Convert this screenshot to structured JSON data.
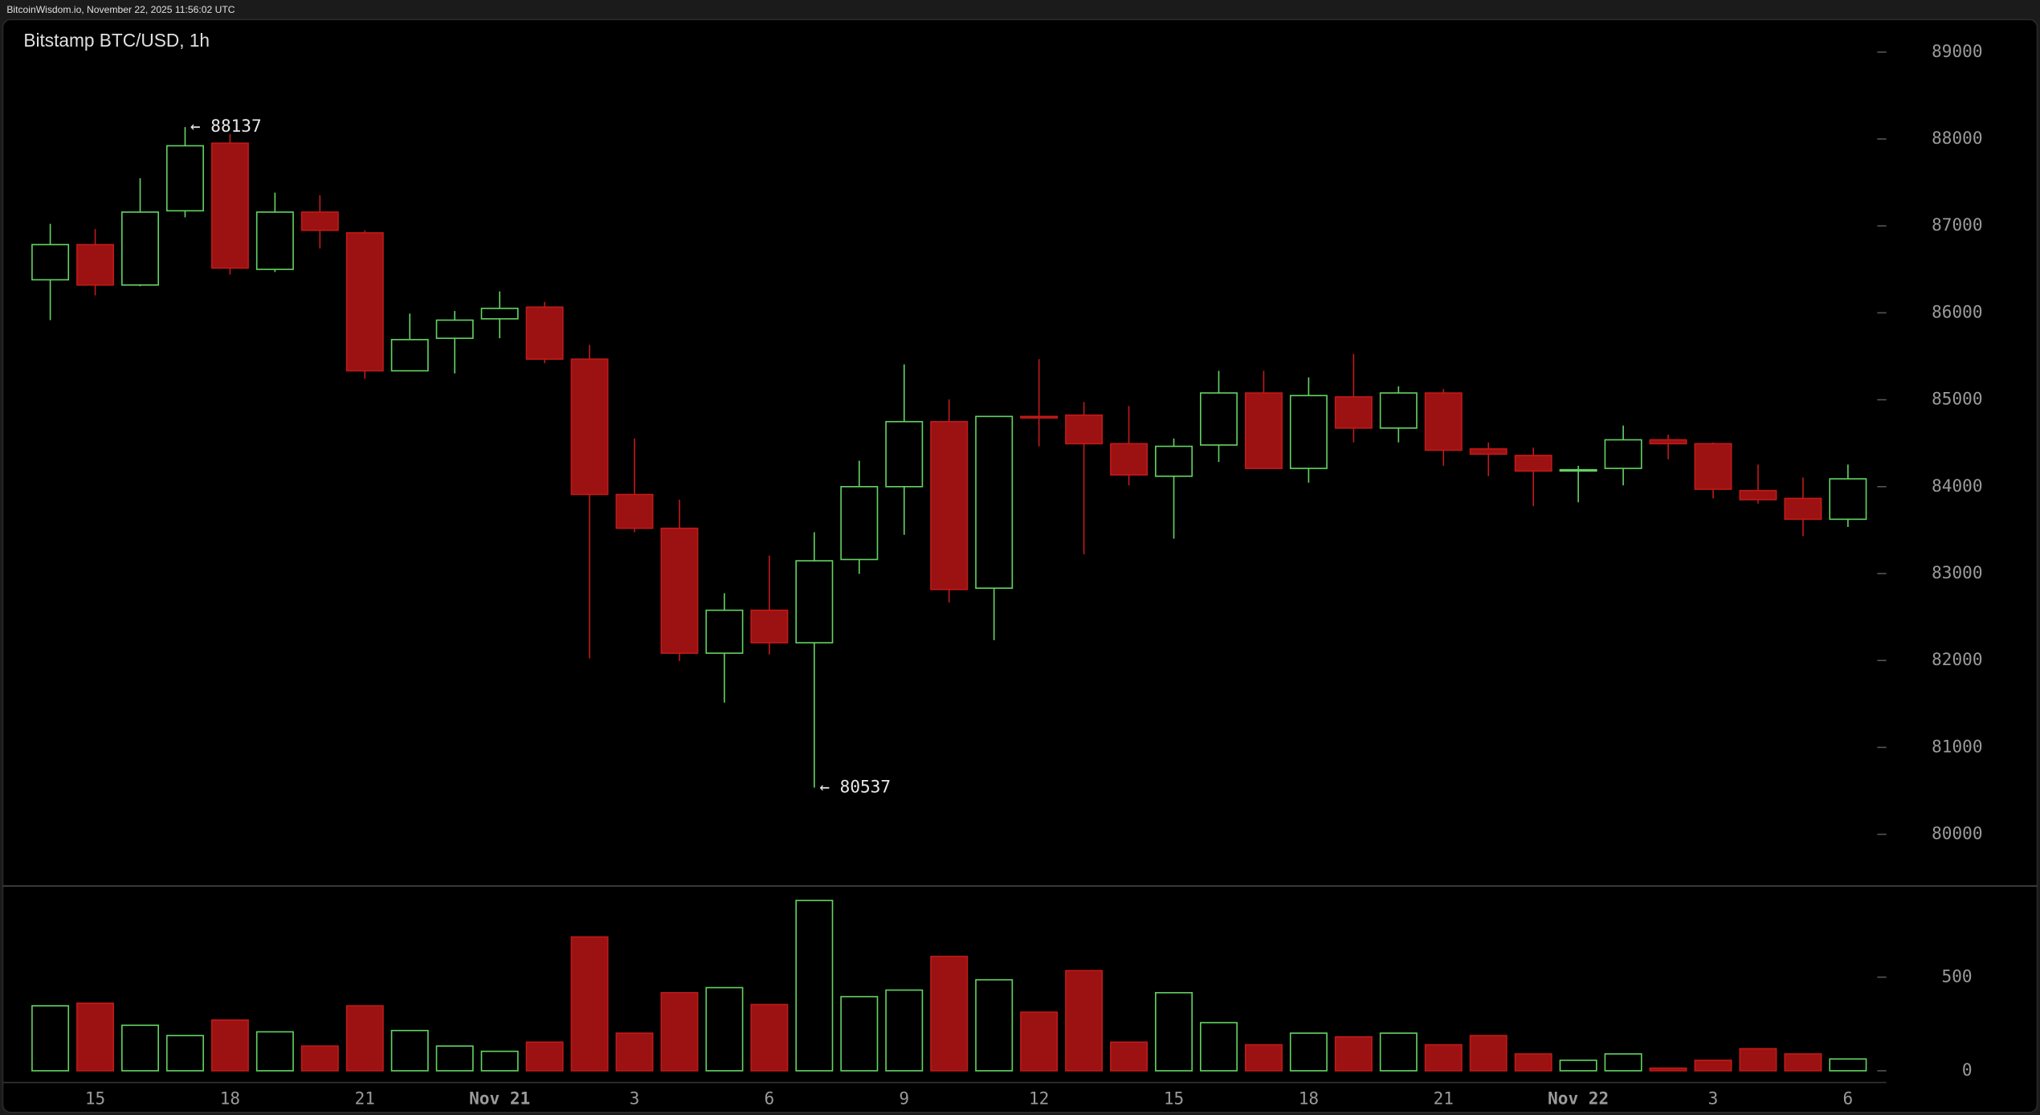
{
  "header": "BitcoinWisdom.io, November 22, 2025 11:56:02 UTC",
  "chart_data": {
    "type": "candlestick",
    "title": "Bitstamp BTC/USD, 1h",
    "categories": [
      null,
      "15",
      null,
      null,
      "18",
      null,
      null,
      "21",
      null,
      null,
      "Nov 21",
      null,
      null,
      "3",
      null,
      null,
      "6",
      null,
      null,
      "9",
      null,
      null,
      "12",
      null,
      null,
      "15",
      null,
      null,
      "18",
      null,
      null,
      "21",
      null,
      null,
      "Nov 22",
      null,
      null,
      "3",
      null,
      null,
      "6"
    ],
    "open": [
      86380,
      86785,
      86320,
      87174,
      87952,
      86500,
      87159,
      86920,
      85333,
      85707,
      85931,
      86066,
      85467,
      83910,
      83521,
      82084,
      82578,
      82204,
      83162,
      84000,
      84748,
      82832,
      84808,
      84823,
      84494,
      84120,
      84479,
      85078,
      84210,
      85033,
      84674,
      85078,
      84434,
      84359,
      84180,
      84210,
      84539,
      84494,
      83955,
      83865,
      83625
    ],
    "high": [
      87024,
      86964,
      87548,
      88137,
      88057,
      87383,
      87353,
      86949,
      85991,
      86021,
      86246,
      86126,
      85632,
      84554,
      83850,
      82773,
      83207,
      83476,
      84299,
      85407,
      85003,
      84808,
      85467,
      84973,
      84928,
      84554,
      85333,
      85333,
      85257,
      85527,
      85153,
      85123,
      84509,
      84449,
      84240,
      84703,
      84599,
      84509,
      84254,
      84105,
      84254
    ],
    "low": [
      85916,
      86200,
      86306,
      87099,
      86440,
      86470,
      86740,
      85243,
      85333,
      85303,
      85707,
      85422,
      82024,
      83476,
      81994,
      81515,
      82069,
      80537,
      82997,
      83446,
      82667,
      82234,
      84464,
      83222,
      84015,
      83401,
      84284,
      84210,
      84045,
      84509,
      84509,
      84240,
      84120,
      83775,
      83820,
      84015,
      84314,
      83865,
      83805,
      83431,
      83536
    ],
    "close": [
      86785,
      86320,
      87159,
      87922,
      86515,
      87159,
      86949,
      85333,
      85692,
      85916,
      86051,
      85467,
      83910,
      83521,
      82084,
      82578,
      82204,
      83147,
      84000,
      84748,
      82817,
      84808,
      84790,
      84494,
      84135,
      84464,
      85078,
      84210,
      85048,
      84674,
      85078,
      84419,
      84374,
      84180,
      84195,
      84539,
      84494,
      83970,
      83850,
      83625,
      84090
    ],
    "volume": [
      347,
      361,
      243,
      188,
      271,
      208,
      132,
      347,
      215,
      132,
      104,
      153,
      715,
      201,
      417,
      444,
      354,
      910,
      396,
      431,
      611,
      486,
      313,
      535,
      153,
      417,
      257,
      139,
      201,
      181,
      201,
      139,
      188,
      90,
      56,
      90,
      14,
      56,
      118,
      90,
      63
    ],
    "annotations": [
      {
        "label": "← 88137",
        "value": 88137
      },
      {
        "label": "← 80537",
        "value": 80537
      }
    ],
    "ylim": [
      79420,
      89225
    ],
    "yticks": [
      80000,
      81000,
      82000,
      83000,
      84000,
      85000,
      86000,
      87000,
      88000,
      89000
    ],
    "volume_ylim": [
      0,
      980
    ],
    "volume_yticks": [
      0,
      500
    ],
    "up_color": "#62d362",
    "down_color": "#9c1111",
    "down_stroke": "#c01a1a"
  }
}
